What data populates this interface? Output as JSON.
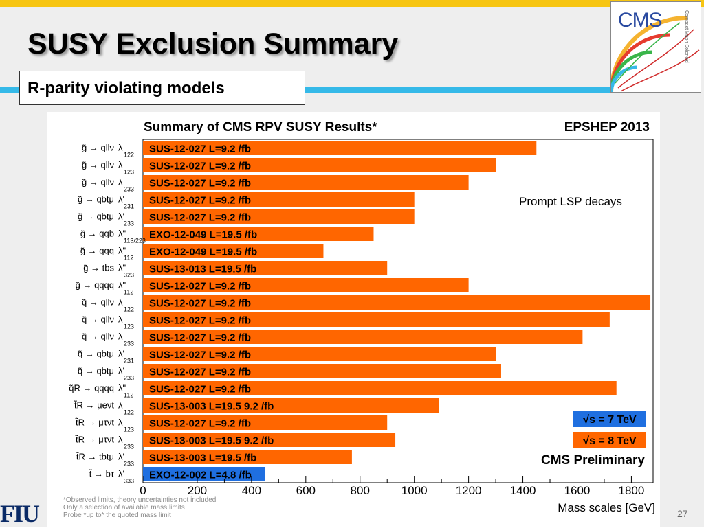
{
  "slide": {
    "title": "SUSY Exclusion Summary",
    "subtitle": "R-parity violating models",
    "page_number": "27",
    "logo_text": "CMS",
    "logo_subtext": "Compact Muon Solenoid",
    "institution_logo": "FIU",
    "colors": {
      "top_bar": "#f7c511",
      "accent_line": "#35b9e8",
      "orange": "#ff6600",
      "blue": "#1f6fe0"
    }
  },
  "chart_data": {
    "type": "bar",
    "orientation": "horizontal",
    "title": "Summary of CMS RPV SUSY Results*",
    "conference": "EPSHEP 2013",
    "annotation": "Prompt LSP decays",
    "preliminary": "CMS Preliminary",
    "xlabel": "Mass scales [GeV]",
    "xlim": [
      0,
      1880
    ],
    "xticks": [
      0,
      200,
      400,
      600,
      800,
      1000,
      1200,
      1400,
      1600,
      1800
    ],
    "legend": [
      {
        "label": "√s = 7 TeV",
        "color": "#1f6fe0"
      },
      {
        "label": "√s = 8 TeV",
        "color": "#ff6600"
      }
    ],
    "legend_placement": "bottom-right",
    "bars": [
      {
        "model": "g̃ → qllν",
        "coupling": "λ",
        "sub": "122",
        "label": "SUS-12-027 L=9.2 /fb",
        "value": 1450,
        "energy": "8"
      },
      {
        "model": "g̃ → qllν",
        "coupling": "λ",
        "sub": "123",
        "label": "SUS-12-027 L=9.2 /fb",
        "value": 1300,
        "energy": "8"
      },
      {
        "model": "g̃ → qllν",
        "coupling": "λ",
        "sub": "233",
        "label": "SUS-12-027 L=9.2 /fb",
        "value": 1200,
        "energy": "8"
      },
      {
        "model": "g̃ → qbtμ",
        "coupling": "λ'",
        "sub": "231",
        "label": "SUS-12-027 L=9.2 /fb",
        "value": 1000,
        "energy": "8"
      },
      {
        "model": "g̃ → qbtμ",
        "coupling": "λ'",
        "sub": "233",
        "label": "SUS-12-027 L=9.2 /fb",
        "value": 1000,
        "energy": "8"
      },
      {
        "model": "g̃ → qqb",
        "coupling": "λ\"",
        "sub": "113/223",
        "label": "EXO-12-049 L=19.5 /fb",
        "value": 850,
        "energy": "8"
      },
      {
        "model": "g̃ → qqq",
        "coupling": "λ\"",
        "sub": "112",
        "label": "EXO-12-049 L=19.5 /fb",
        "value": 665,
        "energy": "8"
      },
      {
        "model": "g̃ → tbs",
        "coupling": "λ\"",
        "sub": "323",
        "label": "SUS-13-013 L=19.5 /fb",
        "value": 900,
        "energy": "8"
      },
      {
        "model": "g̃ → qqqq",
        "coupling": "λ\"",
        "sub": "112",
        "label": "SUS-12-027 L=9.2 /fb",
        "value": 1200,
        "energy": "8"
      },
      {
        "model": "q̃ → qllν",
        "coupling": "λ",
        "sub": "122",
        "label": "SUS-12-027 L=9.2 /fb",
        "value": 1870,
        "energy": "8"
      },
      {
        "model": "q̃ → qllν",
        "coupling": "λ",
        "sub": "123",
        "label": "SUS-12-027 L=9.2 /fb",
        "value": 1720,
        "energy": "8"
      },
      {
        "model": "q̃ → qllν",
        "coupling": "λ",
        "sub": "233",
        "label": "SUS-12-027 L=9.2 /fb",
        "value": 1620,
        "energy": "8"
      },
      {
        "model": "q̃ → qbtμ",
        "coupling": "λ'",
        "sub": "231",
        "label": "SUS-12-027 L=9.2 /fb",
        "value": 1300,
        "energy": "8"
      },
      {
        "model": "q̃ → qbtμ",
        "coupling": "λ'",
        "sub": "233",
        "label": "SUS-12-027 L=9.2 /fb",
        "value": 1320,
        "energy": "8"
      },
      {
        "model": "q̃R → qqqq",
        "coupling": "λ\"",
        "sub": "112",
        "label": "SUS-12-027 L=9.2 /fb",
        "value": 1745,
        "energy": "8"
      },
      {
        "model": "t̃R → μeνt",
        "coupling": "λ",
        "sub": "122",
        "label": "SUS-13-003 L=19.5 9.2 /fb",
        "value": 1090,
        "energy": "8"
      },
      {
        "model": "t̃R → μτνt",
        "coupling": "λ",
        "sub": "123",
        "label": "SUS-12-027 L=9.2 /fb",
        "value": 900,
        "energy": "8"
      },
      {
        "model": "t̃R → μτνt",
        "coupling": "λ",
        "sub": "233",
        "label": "SUS-13-003 L=19.5 9.2 /fb",
        "value": 930,
        "energy": "8"
      },
      {
        "model": "t̃R → tbtμ",
        "coupling": "λ'",
        "sub": "233",
        "label": "SUS-13-003 L=19.5 /fb",
        "value": 770,
        "energy": "8"
      },
      {
        "model": "t̃ → bτ",
        "coupling": "λ'",
        "sub": "333",
        "label": "EXO-12-002 L=4.8 /fb",
        "value": 450,
        "energy": "7"
      }
    ],
    "footnotes": [
      "*Observed limits, theory uncertainties not included",
      "Only a selection of available mass limits",
      "Probe *up to* the quoted mass limit"
    ]
  }
}
